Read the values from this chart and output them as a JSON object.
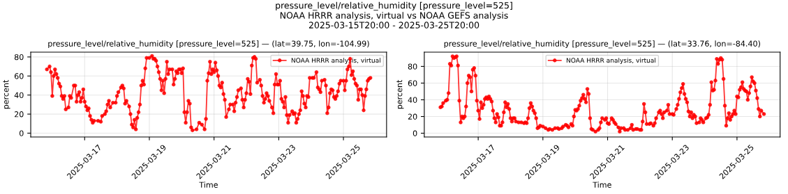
{
  "chart_data": [
    {
      "type": "line",
      "annotations": [
        "pressure_level/relative_humidity [pressure_level=525]\nNOAA HRRR analysis, virtual vs NOAA GEFS analysis\n2025-03-15T20:00 - 2025-03-25T20:00"
      ],
      "title": "pressure_level/relative_humidity [pressure_level=525] — (lat=39.75, lon=-104.99)",
      "xlabel": "Time",
      "ylabel": "percent",
      "xlim": [
        "2025-03-15T08:00",
        "2025-03-26T08:00"
      ],
      "xticks": [
        "2025-03-17",
        "2025-03-19",
        "2025-03-21",
        "2025-03-23",
        "2025-03-25"
      ],
      "ylim": [
        -4,
        85
      ],
      "yticks": [
        0,
        20,
        40,
        60,
        80
      ],
      "grid": true,
      "legend": "top right",
      "marker": "circle",
      "line_style": "solid",
      "x": [
        "2025-03-15T20:00",
        "2025-03-15T22:00",
        "2025-03-15T23:00",
        "2025-03-16T00:00",
        "2025-03-16T01:00",
        "2025-03-16T02:00",
        "2025-03-16T03:00",
        "2025-03-16T04:00",
        "2025-03-16T05:00",
        "2025-03-16T06:00",
        "2025-03-16T07:00",
        "2025-03-16T08:00",
        "2025-03-16T09:00",
        "2025-03-16T10:00",
        "2025-03-16T12:00",
        "2025-03-16T13:00",
        "2025-03-16T14:00",
        "2025-03-16T16:00",
        "2025-03-16T17:00",
        "2025-03-16T18:00",
        "2025-03-16T19:00",
        "2025-03-16T20:00",
        "2025-03-16T21:00",
        "2025-03-16T22:00",
        "2025-03-16T23:00",
        "2025-03-17T00:00",
        "2025-03-17T01:00",
        "2025-03-17T02:00",
        "2025-03-17T03:00",
        "2025-03-17T04:00",
        "2025-03-17T05:00",
        "2025-03-17T06:00",
        "2025-03-17T07:00",
        "2025-03-17T10:00",
        "2025-03-17T12:00",
        "2025-03-17T13:00",
        "2025-03-17T15:00",
        "2025-03-17T16:00",
        "2025-03-17T17:00",
        "2025-03-17T18:00",
        "2025-03-17T19:00",
        "2025-03-17T21:00",
        "2025-03-17T23:00",
        "2025-03-18T00:00",
        "2025-03-18T01:00",
        "2025-03-18T03:00",
        "2025-03-18T04:00",
        "2025-03-18T05:00",
        "2025-03-18T06:00",
        "2025-03-18T07:00",
        "2025-03-18T09:00",
        "2025-03-18T10:00",
        "2025-03-18T11:00",
        "2025-03-18T12:00",
        "2025-03-18T13:00",
        "2025-03-18T14:00",
        "2025-03-18T15:00",
        "2025-03-18T16:00",
        "2025-03-18T17:00",
        "2025-03-18T18:00",
        "2025-03-18T19:00",
        "2025-03-18T20:00",
        "2025-03-18T21:00",
        "2025-03-18T22:00",
        "2025-03-19T00:00",
        "2025-03-19T02:00",
        "2025-03-19T03:00",
        "2025-03-19T04:00",
        "2025-03-19T05:00",
        "2025-03-19T06:00",
        "2025-03-19T07:00",
        "2025-03-19T08:00",
        "2025-03-19T09:00",
        "2025-03-19T10:00",
        "2025-03-19T11:00",
        "2025-03-19T12:00",
        "2025-03-19T13:00",
        "2025-03-19T14:00",
        "2025-03-19T15:00",
        "2025-03-19T17:00",
        "2025-03-19T18:00",
        "2025-03-19T19:00",
        "2025-03-19T20:00",
        "2025-03-19T21:00",
        "2025-03-19T22:00",
        "2025-03-19T23:00",
        "2025-03-20T00:00",
        "2025-03-20T01:00",
        "2025-03-20T02:00",
        "2025-03-20T03:00",
        "2025-03-20T04:00",
        "2025-03-20T05:00",
        "2025-03-20T06:00",
        "2025-03-20T07:00",
        "2025-03-20T08:00",
        "2025-03-20T11:00",
        "2025-03-20T13:00",
        "2025-03-20T15:00",
        "2025-03-20T17:00",
        "2025-03-20T18:00",
        "2025-03-20T19:00",
        "2025-03-20T20:00",
        "2025-03-20T21:00",
        "2025-03-20T22:00",
        "2025-03-20T23:00",
        "2025-03-21T00:00",
        "2025-03-21T01:00",
        "2025-03-21T02:00",
        "2025-03-21T03:00",
        "2025-03-21T04:00",
        "2025-03-21T05:00",
        "2025-03-21T06:00",
        "2025-03-21T07:00",
        "2025-03-21T08:00",
        "2025-03-21T09:00",
        "2025-03-21T11:00",
        "2025-03-21T12:00",
        "2025-03-21T14:00",
        "2025-03-21T15:00",
        "2025-03-21T16:00",
        "2025-03-21T17:00",
        "2025-03-21T18:00",
        "2025-03-21T20:00",
        "2025-03-21T21:00",
        "2025-03-21T22:00",
        "2025-03-21T23:00",
        "2025-03-22T00:00",
        "2025-03-22T01:00",
        "2025-03-22T02:00",
        "2025-03-22T03:00",
        "2025-03-22T04:00",
        "2025-03-22T05:00",
        "2025-03-22T06:00",
        "2025-03-22T07:00",
        "2025-03-22T08:00",
        "2025-03-22T10:00",
        "2025-03-22T11:00",
        "2025-03-22T12:00",
        "2025-03-22T13:00",
        "2025-03-22T14:00",
        "2025-03-22T15:00",
        "2025-03-22T16:00",
        "2025-03-22T17:00",
        "2025-03-22T19:00",
        "2025-03-22T20:00",
        "2025-03-22T21:00",
        "2025-03-22T22:00",
        "2025-03-22T23:00",
        "2025-03-23T00:00",
        "2025-03-23T01:00",
        "2025-03-23T02:00",
        "2025-03-23T03:00",
        "2025-03-23T04:00",
        "2025-03-23T05:00",
        "2025-03-23T06:00",
        "2025-03-23T07:00",
        "2025-03-23T08:00",
        "2025-03-23T10:00",
        "2025-03-23T11:00",
        "2025-03-23T12:00",
        "2025-03-23T13:00",
        "2025-03-23T14:00",
        "2025-03-23T15:00",
        "2025-03-23T16:00",
        "2025-03-23T17:00",
        "2025-03-23T18:00",
        "2025-03-23T19:00",
        "2025-03-23T20:00",
        "2025-03-23T21:00",
        "2025-03-23T22:00",
        "2025-03-23T23:00",
        "2025-03-24T01:00",
        "2025-03-24T02:00",
        "2025-03-24T04:00",
        "2025-03-24T05:00",
        "2025-03-24T06:00",
        "2025-03-24T07:00",
        "2025-03-24T08:00",
        "2025-03-24T10:00",
        "2025-03-24T11:00",
        "2025-03-24T12:00",
        "2025-03-24T13:00",
        "2025-03-24T14:00",
        "2025-03-24T15:00",
        "2025-03-24T16:00",
        "2025-03-24T17:00",
        "2025-03-24T18:00",
        "2025-03-24T19:00",
        "2025-03-24T20:00",
        "2025-03-24T21:00",
        "2025-03-24T22:00",
        "2025-03-25T00:00",
        "2025-03-25T01:00",
        "2025-03-25T02:00",
        "2025-03-25T03:00",
        "2025-03-25T04:00",
        "2025-03-25T05:00",
        "2025-03-25T06:00",
        "2025-03-25T07:00",
        "2025-03-25T08:00",
        "2025-03-25T09:00",
        "2025-03-25T10:00",
        "2025-03-25T11:00",
        "2025-03-25T12:00",
        "2025-03-25T13:00",
        "2025-03-25T14:00",
        "2025-03-25T15:00",
        "2025-03-25T16:00",
        "2025-03-25T17:00",
        "2025-03-25T18:00",
        "2025-03-25T19:00",
        "2025-03-25T20:00"
      ],
      "series": [
        {
          "name": "NOAA HRRR analysis, virtual",
          "color": "#ff0000",
          "values": [
            67,
            70,
            64,
            39,
            60,
            67,
            62,
            58,
            52,
            49,
            39,
            36,
            39,
            25,
            27,
            39,
            37,
            50,
            50,
            33,
            40,
            43,
            33,
            37,
            46,
            33,
            28,
            24,
            26,
            18,
            14,
            11,
            13,
            13,
            12,
            18,
            20,
            23,
            30,
            34,
            27,
            32,
            32,
            39,
            43,
            48,
            50,
            47,
            31,
            34,
            28,
            20,
            9,
            6,
            14,
            4,
            16,
            22,
            30,
            50,
            55,
            51,
            68,
            79,
            79,
            81,
            78,
            78,
            76,
            70,
            64,
            57,
            45,
            55,
            42,
            57,
            75,
            62,
            67,
            67,
            51,
            57,
            65,
            63,
            67,
            67,
            63,
            68,
            22,
            11,
            22,
            34,
            31,
            6,
            3,
            4,
            11,
            9,
            4,
            15,
            55,
            63,
            75,
            62,
            67,
            64,
            74,
            66,
            60,
            50,
            48,
            53,
            41,
            35,
            17,
            25,
            30,
            30,
            23,
            32,
            38,
            45,
            47,
            35,
            27,
            35,
            42,
            57,
            54,
            41,
            71,
            79,
            80,
            78,
            53,
            56,
            50,
            39,
            32,
            36,
            42,
            39,
            34,
            27,
            21,
            51,
            62,
            51,
            51,
            55,
            36,
            33,
            27,
            38,
            19,
            11,
            19,
            23,
            20,
            21,
            11,
            15,
            20,
            24,
            44,
            39,
            31,
            27,
            39,
            38,
            58,
            58,
            58,
            64,
            48,
            46,
            43,
            55,
            56,
            50,
            21,
            27,
            42,
            46,
            45,
            38,
            36,
            39,
            44,
            52,
            55,
            55,
            45,
            55,
            67,
            70,
            78,
            61,
            65,
            57,
            52,
            50,
            35,
            46,
            46,
            40,
            24,
            39,
            46,
            55,
            57,
            58
          ]
        }
      ]
    },
    {
      "type": "line",
      "title": "pressure_level/relative_humidity [pressure_level=525] — (lat=33.76, lon=-84.40)",
      "xlabel": "Time",
      "ylabel": "percent",
      "xlim": [
        "2025-03-15T08:00",
        "2025-03-26T08:00"
      ],
      "xticks": [
        "2025-03-17",
        "2025-03-19",
        "2025-03-21",
        "2025-03-23",
        "2025-03-25"
      ],
      "ylim": [
        -4.5,
        97
      ],
      "yticks": [
        0,
        20,
        40,
        60,
        80
      ],
      "grid": true,
      "legend": "top",
      "marker": "circle",
      "line_style": "solid",
      "x": [
        "2025-03-15T20:00",
        "2025-03-15T21:00",
        "2025-03-15T22:00",
        "2025-03-16T00:00",
        "2025-03-16T01:00",
        "2025-03-16T02:00",
        "2025-03-16T03:00",
        "2025-03-16T04:00",
        "2025-03-16T05:00",
        "2025-03-16T06:00",
        "2025-03-16T07:00",
        "2025-03-16T08:00",
        "2025-03-16T09:00",
        "2025-03-16T10:00",
        "2025-03-16T11:00",
        "2025-03-16T12:00",
        "2025-03-16T13:00",
        "2025-03-16T14:00",
        "2025-03-16T15:00",
        "2025-03-16T16:00",
        "2025-03-16T17:00",
        "2025-03-16T18:00",
        "2025-03-16T19:00",
        "2025-03-16T20:00",
        "2025-03-16T21:00",
        "2025-03-16T22:00",
        "2025-03-16T23:00",
        "2025-03-17T00:00",
        "2025-03-17T01:00",
        "2025-03-17T02:00",
        "2025-03-17T03:00",
        "2025-03-17T04:00",
        "2025-03-17T05:00",
        "2025-03-17T06:00",
        "2025-03-17T07:00",
        "2025-03-17T08:00",
        "2025-03-17T09:00",
        "2025-03-17T10:00",
        "2025-03-17T11:00",
        "2025-03-17T12:00",
        "2025-03-17T13:00",
        "2025-03-17T14:00",
        "2025-03-17T15:00",
        "2025-03-17T16:00",
        "2025-03-17T17:00",
        "2025-03-17T18:00",
        "2025-03-17T19:00",
        "2025-03-17T20:00",
        "2025-03-17T21:00",
        "2025-03-17T22:00",
        "2025-03-17T23:00",
        "2025-03-18T00:00",
        "2025-03-18T01:00",
        "2025-03-18T02:00",
        "2025-03-18T03:00",
        "2025-03-18T04:00",
        "2025-03-18T06:00",
        "2025-03-18T08:00",
        "2025-03-18T10:00",
        "2025-03-18T11:00",
        "2025-03-18T12:00",
        "2025-03-18T13:00",
        "2025-03-18T14:00",
        "2025-03-18T15:00",
        "2025-03-18T16:00",
        "2025-03-18T17:00",
        "2025-03-18T18:00",
        "2025-03-18T19:00",
        "2025-03-18T20:00",
        "2025-03-18T21:00",
        "2025-03-18T22:00",
        "2025-03-19T00:00",
        "2025-03-19T02:00",
        "2025-03-19T04:00",
        "2025-03-19T05:00",
        "2025-03-19T07:00",
        "2025-03-19T09:00",
        "2025-03-19T11:00",
        "2025-03-19T12:00",
        "2025-03-19T14:00",
        "2025-03-19T15:00",
        "2025-03-19T17:00",
        "2025-03-19T18:00",
        "2025-03-19T19:00",
        "2025-03-19T21:00",
        "2025-03-19T22:00",
        "2025-03-19T23:00",
        "2025-03-20T00:00",
        "2025-03-20T01:00",
        "2025-03-20T02:00",
        "2025-03-20T03:00",
        "2025-03-20T04:00",
        "2025-03-20T05:00",
        "2025-03-20T06:00",
        "2025-03-20T07:00",
        "2025-03-20T08:00",
        "2025-03-20T09:00",
        "2025-03-20T10:00",
        "2025-03-20T11:00",
        "2025-03-20T12:00",
        "2025-03-20T13:00",
        "2025-03-20T15:00",
        "2025-03-20T17:00",
        "2025-03-20T18:00",
        "2025-03-20T19:00",
        "2025-03-20T20:00",
        "2025-03-20T22:00",
        "2025-03-20T23:00",
        "2025-03-21T00:00",
        "2025-03-21T01:00",
        "2025-03-21T03:00",
        "2025-03-21T04:00",
        "2025-03-21T05:00",
        "2025-03-21T06:00",
        "2025-03-21T08:00",
        "2025-03-21T09:00",
        "2025-03-21T10:00",
        "2025-03-21T12:00",
        "2025-03-21T13:00",
        "2025-03-21T15:00",
        "2025-03-21T17:00",
        "2025-03-21T18:00",
        "2025-03-21T19:00",
        "2025-03-21T21:00",
        "2025-03-21T22:00",
        "2025-03-22T00:00",
        "2025-03-22T01:00",
        "2025-03-22T02:00",
        "2025-03-22T03:00",
        "2025-03-22T04:00",
        "2025-03-22T05:00",
        "2025-03-22T07:00",
        "2025-03-22T08:00",
        "2025-03-22T10:00",
        "2025-03-22T11:00",
        "2025-03-22T12:00",
        "2025-03-22T14:00",
        "2025-03-22T15:00",
        "2025-03-22T16:00",
        "2025-03-22T17:00",
        "2025-03-22T18:00",
        "2025-03-22T20:00",
        "2025-03-22T21:00",
        "2025-03-22T22:00",
        "2025-03-23T00:00",
        "2025-03-23T01:00",
        "2025-03-23T03:00",
        "2025-03-23T04:00",
        "2025-03-23T05:00",
        "2025-03-23T06:00",
        "2025-03-23T07:00",
        "2025-03-23T08:00",
        "2025-03-23T09:00",
        "2025-03-23T10:00",
        "2025-03-23T11:00",
        "2025-03-23T12:00",
        "2025-03-23T13:00",
        "2025-03-23T14:00",
        "2025-03-23T15:00",
        "2025-03-23T16:00",
        "2025-03-23T17:00",
        "2025-03-23T18:00",
        "2025-03-23T20:00",
        "2025-03-23T21:00",
        "2025-03-23T22:00",
        "2025-03-23T23:00",
        "2025-03-24T01:00",
        "2025-03-24T02:00",
        "2025-03-24T03:00",
        "2025-03-24T04:00",
        "2025-03-24T05:00",
        "2025-03-24T06:00",
        "2025-03-24T07:00",
        "2025-03-24T08:00",
        "2025-03-24T09:00",
        "2025-03-24T10:00",
        "2025-03-24T11:00",
        "2025-03-24T12:00",
        "2025-03-24T13:00",
        "2025-03-24T14:00",
        "2025-03-24T15:00",
        "2025-03-24T16:00",
        "2025-03-24T17:00",
        "2025-03-24T18:00",
        "2025-03-24T19:00",
        "2025-03-24T20:00",
        "2025-03-24T21:00",
        "2025-03-24T22:00",
        "2025-03-24T23:00",
        "2025-03-25T00:00",
        "2025-03-25T01:00",
        "2025-03-25T02:00",
        "2025-03-25T03:00",
        "2025-03-25T04:00",
        "2025-03-25T05:00",
        "2025-03-25T06:00",
        "2025-03-25T07:00",
        "2025-03-25T08:00",
        "2025-03-25T09:00",
        "2025-03-25T10:00",
        "2025-03-25T11:00",
        "2025-03-25T12:00",
        "2025-03-25T13:00",
        "2025-03-25T14:00",
        "2025-03-25T15:00",
        "2025-03-25T16:00",
        "2025-03-25T17:00",
        "2025-03-25T18:00",
        "2025-03-25T20:00"
      ],
      "series": [
        {
          "name": "NOAA HRRR analysis, virtual",
          "color": "#ff0000",
          "values": [
            31,
            32,
            36,
            39,
            40,
            48,
            83,
            81,
            92,
            90,
            91,
            92,
            81,
            39,
            13,
            20,
            18,
            20,
            32,
            60,
            69,
            67,
            50,
            76,
            78,
            69,
            39,
            27,
            17,
            37,
            30,
            34,
            41,
            43,
            41,
            44,
            41,
            38,
            27,
            18,
            13,
            23,
            19,
            9,
            9,
            13,
            25,
            37,
            31,
            35,
            29,
            18,
            14,
            18,
            18,
            14,
            13,
            13,
            12,
            13,
            12,
            18,
            30,
            36,
            32,
            27,
            24,
            18,
            6,
            7,
            9,
            8,
            6,
            4,
            5,
            4,
            6,
            6,
            5,
            6,
            8,
            10,
            9,
            7,
            11,
            9,
            20,
            28,
            27,
            29,
            33,
            39,
            42,
            46,
            41,
            37,
            53,
            47,
            18,
            5,
            4,
            2,
            4,
            6,
            13,
            18,
            16,
            18,
            12,
            11,
            18,
            16,
            13,
            11,
            7,
            2,
            6,
            6,
            4,
            4,
            6,
            10,
            4,
            5,
            5,
            4,
            4,
            14,
            35,
            25,
            11,
            11,
            12,
            9,
            12,
            18,
            25,
            27,
            23,
            18,
            25,
            27,
            34,
            23,
            23,
            22,
            29,
            34,
            41,
            49,
            54,
            59,
            47,
            41,
            37,
            26,
            20,
            25,
            18,
            22,
            20,
            12,
            13,
            18,
            16,
            13,
            18,
            19,
            22,
            34,
            61,
            51,
            52,
            63,
            89,
            83,
            88,
            90,
            88,
            65,
            33,
            9,
            18,
            24,
            16,
            20,
            23,
            27,
            23,
            44,
            43,
            52,
            55,
            61,
            53,
            51,
            50,
            40,
            48,
            56,
            67,
            62,
            60,
            51,
            42,
            29,
            20,
            27,
            23
          ]
        }
      ]
    }
  ]
}
